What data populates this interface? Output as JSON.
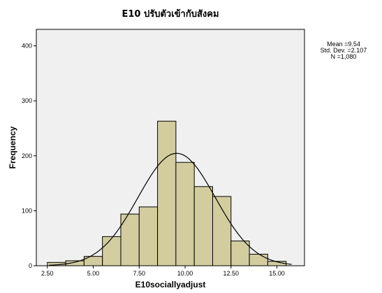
{
  "chart_data": {
    "type": "histogram",
    "title": "E10 ปรับตัวเข้ากับสังคม",
    "xlabel": "E10sociallyadjust",
    "ylabel": "Frequency",
    "xlim": [
      1.9,
      16.5
    ],
    "ylim": [
      0,
      430
    ],
    "x_ticks": [
      2.5,
      5.0,
      7.5,
      10.0,
      12.5,
      15.0
    ],
    "x_tick_labels": [
      "2.50",
      "5.00",
      "7.50",
      "10.00",
      "12.50",
      "15.00"
    ],
    "y_ticks": [
      0,
      100,
      200,
      300,
      400
    ],
    "y_tick_labels": [
      "0",
      "100",
      "200",
      "300",
      "400"
    ],
    "bin_width": 1.0,
    "bins": [
      {
        "start": 2.5,
        "end": 3.5,
        "count": 6
      },
      {
        "start": 3.5,
        "end": 4.5,
        "count": 9
      },
      {
        "start": 4.5,
        "end": 5.5,
        "count": 17
      },
      {
        "start": 5.5,
        "end": 6.5,
        "count": 53
      },
      {
        "start": 6.5,
        "end": 7.5,
        "count": 94
      },
      {
        "start": 7.5,
        "end": 8.5,
        "count": 107
      },
      {
        "start": 8.5,
        "end": 9.5,
        "count": 263
      },
      {
        "start": 9.5,
        "end": 10.5,
        "count": 188
      },
      {
        "start": 10.5,
        "end": 11.5,
        "count": 144
      },
      {
        "start": 11.5,
        "end": 12.5,
        "count": 126
      },
      {
        "start": 12.5,
        "end": 13.5,
        "count": 45
      },
      {
        "start": 13.5,
        "end": 14.5,
        "count": 21
      },
      {
        "start": 14.5,
        "end": 15.5,
        "count": 8
      }
    ],
    "normal_curve": {
      "mean": 9.54,
      "sd": 2.107,
      "n": 1080
    },
    "stats": {
      "mean_label": "Mean =9.54",
      "sd_label": "Std. Dev. =2.107",
      "n_label": "N =1,080"
    },
    "grid": false,
    "colors": {
      "plot_background": "#f0f0f0",
      "bar_fill": "#d2cc9f",
      "bar_stroke": "#000000",
      "curve": "#000000"
    }
  }
}
